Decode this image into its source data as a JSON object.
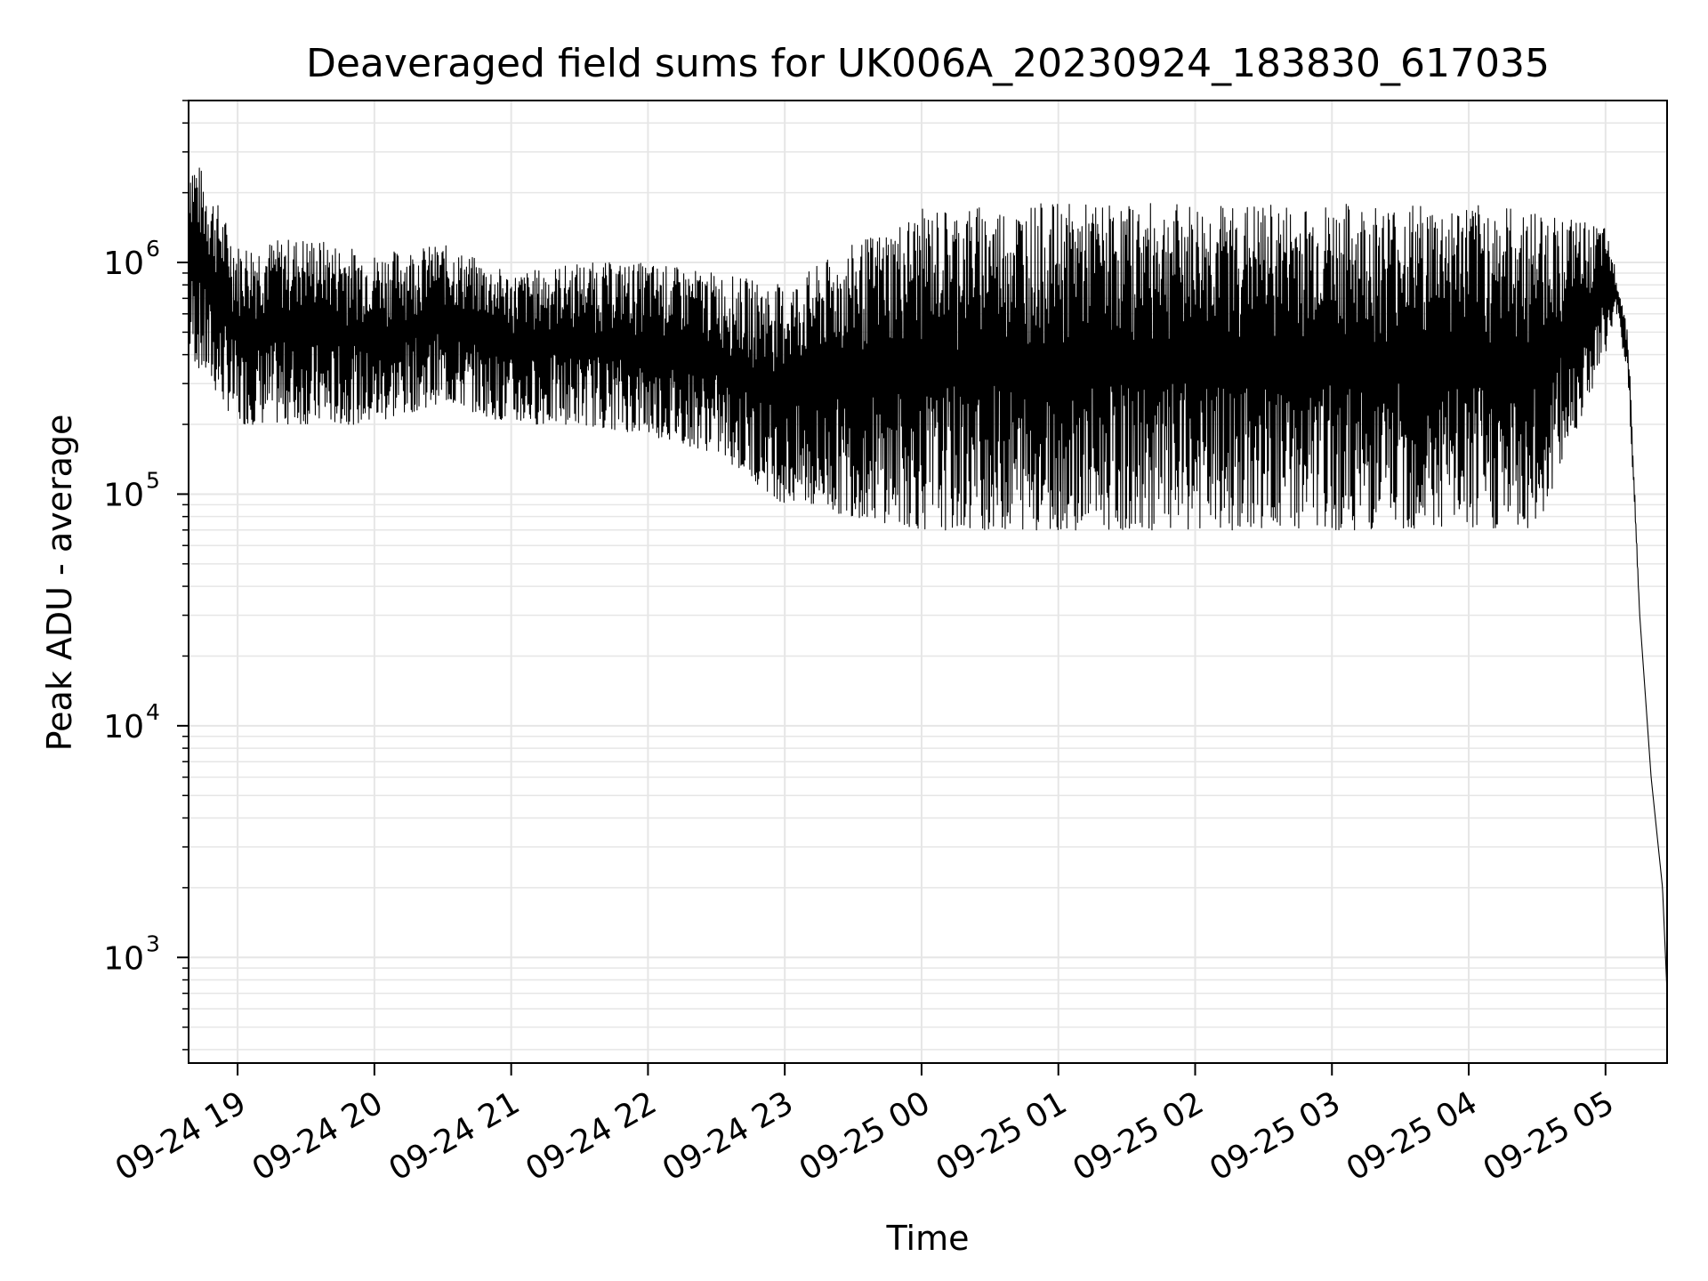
{
  "chart_data": {
    "type": "line",
    "title": "Deaveraged field sums for UK006A_20230924_183830_617035",
    "xlabel": "Time",
    "ylabel": "Peak ADU - average",
    "yscale": "log",
    "grid": true,
    "line_color": "#000000",
    "grid_color": "#e6e6e6",
    "xlim": [
      "2023-09-24 18:38:30",
      "2023-09-25 05:27:00"
    ],
    "ylim": [
      350,
      5000000
    ],
    "x_ticks": [
      {
        "t": "2023-09-24 19:00",
        "label": "09-24 19"
      },
      {
        "t": "2023-09-24 20:00",
        "label": "09-24 20"
      },
      {
        "t": "2023-09-24 21:00",
        "label": "09-24 21"
      },
      {
        "t": "2023-09-24 22:00",
        "label": "09-24 22"
      },
      {
        "t": "2023-09-24 23:00",
        "label": "09-24 23"
      },
      {
        "t": "2023-09-25 00:00",
        "label": "09-25 00"
      },
      {
        "t": "2023-09-25 01:00",
        "label": "09-25 01"
      },
      {
        "t": "2023-09-25 02:00",
        "label": "09-25 02"
      },
      {
        "t": "2023-09-25 03:00",
        "label": "09-25 03"
      },
      {
        "t": "2023-09-25 04:00",
        "label": "09-25 04"
      },
      {
        "t": "2023-09-25 05:00",
        "label": "09-25 05"
      }
    ],
    "y_ticks": [
      {
        "value": 1000,
        "base": "10",
        "exp": "3"
      },
      {
        "value": 10000,
        "base": "10",
        "exp": "4"
      },
      {
        "value": 100000,
        "base": "10",
        "exp": "5"
      },
      {
        "value": 1000000,
        "base": "10",
        "exp": "6"
      }
    ],
    "series": [
      {
        "x": [
          "2023-09-24 18:38:30",
          "2023-09-24 19:00",
          "2023-09-24 19:30",
          "2023-09-24 20:00",
          "2023-09-24 20:30",
          "2023-09-24 21:00",
          "2023-09-24 21:30",
          "2023-09-24 22:00",
          "2023-09-24 22:30",
          "2023-09-24 23:00",
          "2023-09-24 23:30",
          "2023-09-25 00:00",
          "2023-09-25 00:30",
          "2023-09-25 01:00",
          "2023-09-25 01:30",
          "2023-09-25 02:00",
          "2023-09-25 02:30",
          "2023-09-25 03:00",
          "2023-09-25 03:30",
          "2023-09-25 04:00",
          "2023-09-25 04:30",
          "2023-09-25 05:00",
          "2023-09-25 05:05",
          "2023-09-25 05:10",
          "2023-09-25 05:15",
          "2023-09-25 05:20",
          "2023-09-25 05:25",
          "2023-09-25 05:27"
        ],
        "y_upper": [
          3300000,
          1200000,
          1300000,
          1100000,
          1200000,
          900000,
          1000000,
          1000000,
          900000,
          800000,
          1200000,
          1700000,
          1800000,
          1800000,
          1800000,
          1800000,
          1800000,
          1800000,
          1800000,
          1800000,
          1700000,
          1400000,
          900000,
          500000,
          30000,
          6000,
          2000,
          700
        ],
        "y_lower": [
          400000,
          200000,
          200000,
          200000,
          250000,
          200000,
          200000,
          180000,
          150000,
          90000,
          80000,
          70000,
          70000,
          70000,
          70000,
          70000,
          70000,
          70000,
          70000,
          70000,
          70000,
          400000,
          600000,
          300000,
          30000,
          6000,
          2000,
          700
        ]
      }
    ]
  }
}
